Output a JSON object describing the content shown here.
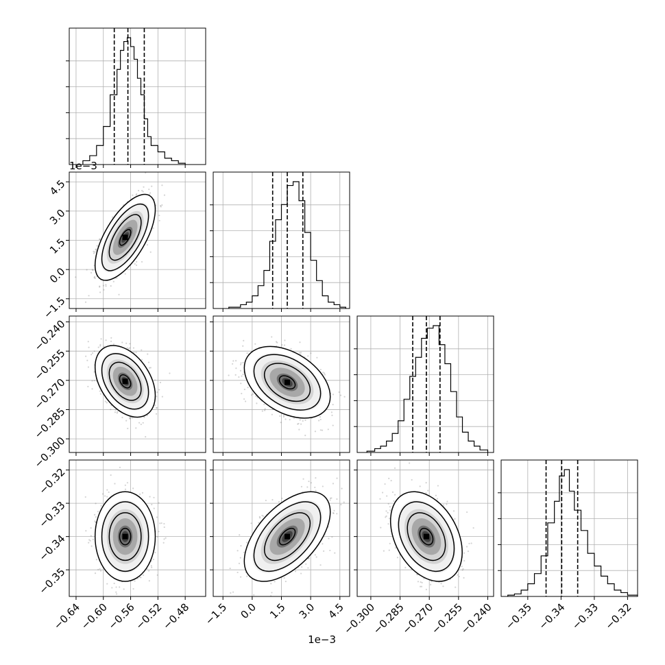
{
  "chart_data": {
    "type": "corner",
    "grid": true,
    "contour_color": "#000000",
    "scatter_color": "#808080",
    "parameters": [
      {
        "range": [
          -0.65,
          -0.45
        ],
        "ticks": [
          -0.64,
          -0.6,
          -0.56,
          -0.52,
          -0.48
        ],
        "tick_labels": [
          "−0.64",
          "−0.60",
          "−0.56",
          "−0.52",
          "−0.48"
        ],
        "offset_label": "",
        "median": -0.564,
        "quantile_16": -0.584,
        "quantile_84": -0.54,
        "hist_bin_edges": [
          -0.63,
          -0.62,
          -0.61,
          -0.6,
          -0.59,
          -0.58,
          -0.575,
          -0.57,
          -0.565,
          -0.56,
          -0.555,
          -0.55,
          -0.545,
          -0.54,
          -0.535,
          -0.53,
          -0.52,
          -0.51,
          -0.5,
          -0.49,
          -0.48
        ],
        "hist_counts": [
          0.03,
          0.07,
          0.15,
          0.3,
          0.55,
          0.75,
          0.9,
          0.97,
          1.0,
          0.93,
          0.83,
          0.68,
          0.55,
          0.36,
          0.22,
          0.15,
          0.1,
          0.05,
          0.03,
          0.01
        ]
      },
      {
        "range": [
          -2.0,
          5.0
        ],
        "ticks": [
          -1.5,
          0.0,
          1.5,
          3.0,
          4.5
        ],
        "tick_labels": [
          "−1.5",
          "0.0",
          "1.5",
          "3.0",
          "4.5"
        ],
        "offset_label": "1e−3",
        "median": 1.8,
        "quantile_16": 1.05,
        "quantile_84": 2.6,
        "hist_bin_edges": [
          -1.2,
          -0.6,
          -0.3,
          0.0,
          0.3,
          0.6,
          0.9,
          1.2,
          1.5,
          1.8,
          2.1,
          2.4,
          2.7,
          3.0,
          3.3,
          3.6,
          3.9,
          4.2,
          4.5,
          4.8
        ],
        "hist_counts": [
          0.01,
          0.03,
          0.05,
          0.1,
          0.18,
          0.3,
          0.53,
          0.7,
          0.82,
          0.97,
          1.0,
          0.85,
          0.6,
          0.38,
          0.22,
          0.1,
          0.05,
          0.03,
          0.01
        ]
      },
      {
        "range": [
          -0.307,
          -0.237
        ],
        "ticks": [
          -0.3,
          -0.285,
          -0.27,
          -0.255,
          -0.24
        ],
        "tick_labels": [
          "−0.300",
          "−0.285",
          "−0.270",
          "−0.255",
          "−0.240"
        ],
        "offset_label": "",
        "median": -0.2715,
        "quantile_16": -0.2785,
        "quantile_84": -0.2645,
        "hist_bin_edges": [
          -0.302,
          -0.298,
          -0.295,
          -0.292,
          -0.289,
          -0.286,
          -0.283,
          -0.28,
          -0.277,
          -0.274,
          -0.271,
          -0.268,
          -0.265,
          -0.262,
          -0.259,
          -0.256,
          -0.253,
          -0.25,
          -0.247,
          -0.244,
          -0.24
        ],
        "hist_counts": [
          0.01,
          0.03,
          0.05,
          0.09,
          0.15,
          0.25,
          0.42,
          0.6,
          0.75,
          0.9,
          0.98,
          1.0,
          0.85,
          0.7,
          0.48,
          0.28,
          0.16,
          0.09,
          0.05,
          0.02
        ]
      },
      {
        "range": [
          -0.358,
          -0.317
        ],
        "ticks": [
          -0.35,
          -0.34,
          -0.33,
          -0.32
        ],
        "tick_labels": [
          "−0.35",
          "−0.34",
          "−0.33",
          "−0.32"
        ],
        "offset_label": "",
        "median": -0.3398,
        "quantile_16": -0.3445,
        "quantile_84": -0.335,
        "hist_bin_edges": [
          -0.356,
          -0.354,
          -0.352,
          -0.35,
          -0.348,
          -0.346,
          -0.344,
          -0.342,
          -0.3405,
          -0.339,
          -0.3375,
          -0.336,
          -0.334,
          -0.332,
          -0.33,
          -0.328,
          -0.326,
          -0.324,
          -0.322,
          -0.32,
          -0.317
        ],
        "hist_counts": [
          0.01,
          0.02,
          0.05,
          0.1,
          0.18,
          0.32,
          0.58,
          0.75,
          0.95,
          1.0,
          0.83,
          0.68,
          0.52,
          0.34,
          0.24,
          0.16,
          0.1,
          0.05,
          0.03,
          0.01
        ]
      }
    ],
    "pairs": [
      {
        "row": 1,
        "col": 0,
        "center": [
          -0.568,
          1.65
        ],
        "sigma": [
          0.018,
          0.9
        ],
        "rho": 0.65
      },
      {
        "row": 2,
        "col": 0,
        "center": [
          -0.568,
          -0.2705
        ],
        "sigma": [
          0.018,
          0.0075
        ],
        "rho": -0.4
      },
      {
        "row": 2,
        "col": 1,
        "center": [
          1.8,
          -0.271
        ],
        "sigma": [
          0.9,
          0.0075
        ],
        "rho": -0.4
      },
      {
        "row": 3,
        "col": 0,
        "center": [
          -0.568,
          -0.34
        ],
        "sigma": [
          0.018,
          0.0055
        ],
        "rho": 0.0
      },
      {
        "row": 3,
        "col": 1,
        "center": [
          1.8,
          -0.34
        ],
        "sigma": [
          0.9,
          0.0055
        ],
        "rho": 0.55
      },
      {
        "row": 3,
        "col": 2,
        "center": [
          -0.2715,
          -0.34
        ],
        "sigma": [
          0.0075,
          0.0055
        ],
        "rho": -0.35
      }
    ]
  }
}
